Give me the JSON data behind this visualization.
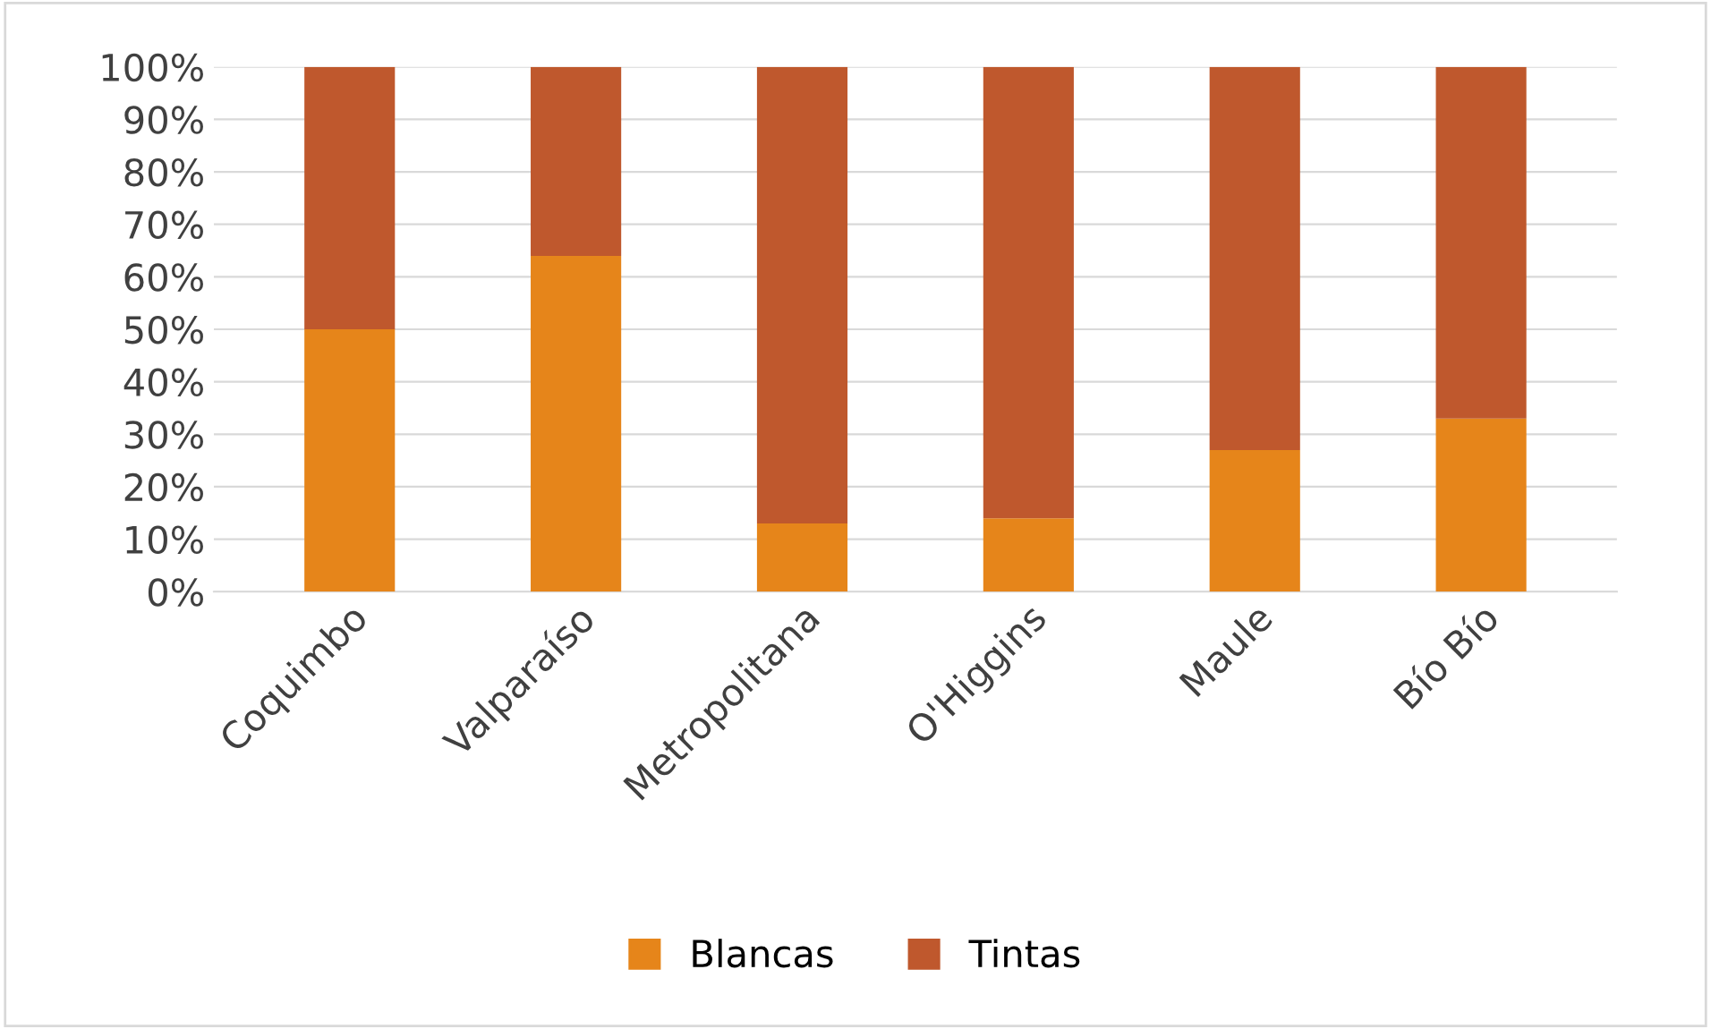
{
  "chart_data": {
    "type": "bar",
    "stacked": true,
    "categories": [
      "Coquimbo",
      "Valparaíso",
      "Metropolitana",
      "O'Higgins",
      "Maule",
      "Bío Bío"
    ],
    "series": [
      {
        "name": "Blancas",
        "color": "#e6851a",
        "values": [
          50,
          64,
          13,
          14,
          27,
          33
        ]
      },
      {
        "name": "Tintas",
        "color": "#bf582d",
        "values": [
          50,
          36,
          87,
          86,
          73,
          67
        ]
      }
    ],
    "ylim": [
      0,
      100
    ],
    "yticks": [
      {
        "value": 0,
        "label": "0%"
      },
      {
        "value": 10,
        "label": "10%"
      },
      {
        "value": 20,
        "label": "20%"
      },
      {
        "value": 30,
        "label": "30%"
      },
      {
        "value": 40,
        "label": "40%"
      },
      {
        "value": 50,
        "label": "50%"
      },
      {
        "value": 60,
        "label": "60%"
      },
      {
        "value": 70,
        "label": "70%"
      },
      {
        "value": 80,
        "label": "80%"
      },
      {
        "value": 90,
        "label": "90%"
      },
      {
        "value": 100,
        "label": "100%"
      }
    ],
    "grid": "y",
    "legend": "bottom"
  }
}
